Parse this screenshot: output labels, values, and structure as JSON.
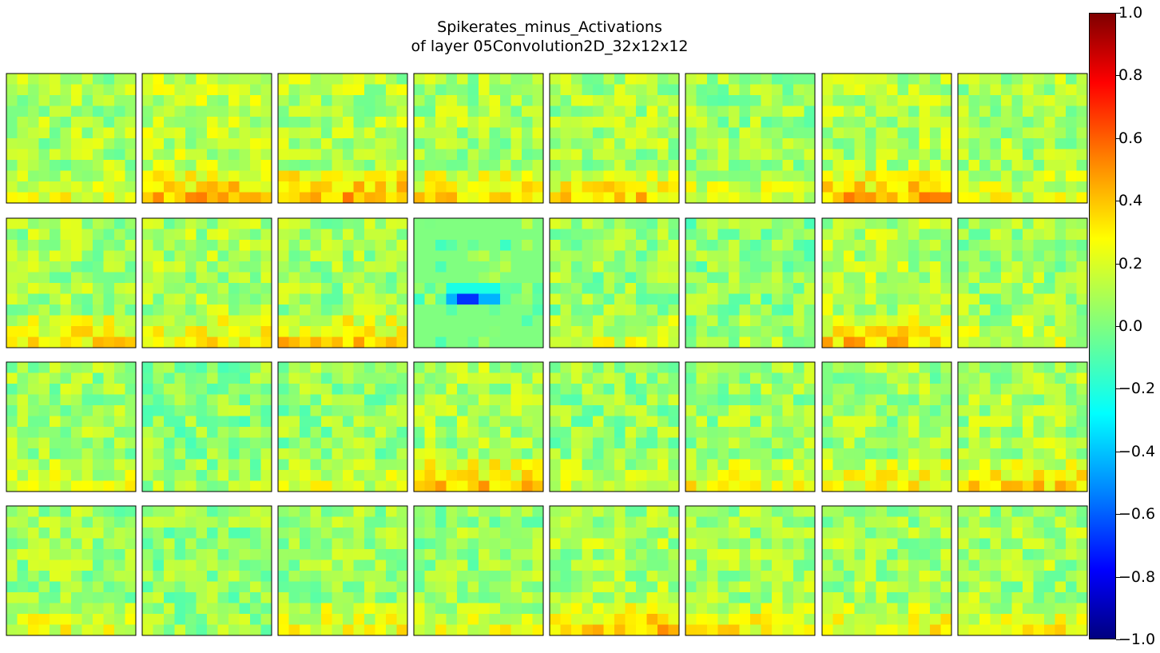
{
  "chart_data": {
    "type": "heatmap",
    "title": "Spikerates_minus_Activations",
    "subtitle": "of layer 05Convolution2D_32x12x12",
    "grid": {
      "rows": 4,
      "cols": 8,
      "map_size": 12
    },
    "colormap": "jet",
    "vmin": -1.0,
    "vmax": 1.0,
    "colorbar_ticks": [
      "1.0",
      "0.8",
      "0.6",
      "0.4",
      "0.2",
      "0.0",
      "−0.2",
      "−0.4",
      "−0.6",
      "−0.8",
      "−1.0"
    ],
    "colorbar_tick_values": [
      1.0,
      0.8,
      0.6,
      0.4,
      0.2,
      0.0,
      -0.2,
      -0.4,
      -0.6,
      -0.8,
      -1.0
    ],
    "feature_maps_note_values": [
      {
        "index": 0,
        "mean": 0.08,
        "bottom_rows_mean": 0.22
      },
      {
        "index": 1,
        "mean": 0.12,
        "bottom_rows_mean": 0.38
      },
      {
        "index": 2,
        "mean": 0.1,
        "bottom_rows_mean": 0.4
      },
      {
        "index": 3,
        "mean": 0.08,
        "bottom_rows_mean": 0.3
      },
      {
        "index": 4,
        "mean": 0.08,
        "bottom_rows_mean": 0.32
      },
      {
        "index": 5,
        "mean": 0.06,
        "bottom_rows_mean": 0.2
      },
      {
        "index": 6,
        "mean": 0.1,
        "bottom_rows_mean": 0.38
      },
      {
        "index": 7,
        "mean": 0.08,
        "bottom_rows_mean": 0.18
      },
      {
        "index": 8,
        "mean": 0.08,
        "bottom_rows_mean": 0.3
      },
      {
        "index": 9,
        "mean": 0.08,
        "bottom_rows_mean": 0.28
      },
      {
        "index": 10,
        "mean": 0.07,
        "bottom_rows_mean": 0.32
      },
      {
        "index": 11,
        "mean": 0.0,
        "bottom_rows_mean": 0.0
      },
      {
        "index": 12,
        "mean": 0.05,
        "bottom_rows_mean": 0.18
      },
      {
        "index": 13,
        "mean": 0.02,
        "bottom_rows_mean": 0.08
      },
      {
        "index": 14,
        "mean": 0.1,
        "bottom_rows_mean": 0.34
      },
      {
        "index": 15,
        "mean": 0.06,
        "bottom_rows_mean": 0.16
      },
      {
        "index": 16,
        "mean": 0.06,
        "bottom_rows_mean": 0.18
      },
      {
        "index": 17,
        "mean": 0.02,
        "bottom_rows_mean": 0.08
      },
      {
        "index": 18,
        "mean": 0.04,
        "bottom_rows_mean": 0.16
      },
      {
        "index": 19,
        "mean": 0.08,
        "bottom_rows_mean": 0.34
      },
      {
        "index": 20,
        "mean": 0.04,
        "bottom_rows_mean": 0.14
      },
      {
        "index": 21,
        "mean": 0.06,
        "bottom_rows_mean": 0.22
      },
      {
        "index": 22,
        "mean": 0.06,
        "bottom_rows_mean": 0.24
      },
      {
        "index": 23,
        "mean": 0.08,
        "bottom_rows_mean": 0.3
      },
      {
        "index": 24,
        "mean": 0.06,
        "bottom_rows_mean": 0.2
      },
      {
        "index": 25,
        "mean": 0.03,
        "bottom_rows_mean": 0.06
      },
      {
        "index": 26,
        "mean": 0.06,
        "bottom_rows_mean": 0.22
      },
      {
        "index": 27,
        "mean": 0.05,
        "bottom_rows_mean": 0.18
      },
      {
        "index": 28,
        "mean": 0.08,
        "bottom_rows_mean": 0.34
      },
      {
        "index": 29,
        "mean": 0.07,
        "bottom_rows_mean": 0.24
      },
      {
        "index": 30,
        "mean": 0.07,
        "bottom_rows_mean": 0.24
      },
      {
        "index": 31,
        "mean": 0.07,
        "bottom_rows_mean": 0.22
      }
    ]
  }
}
